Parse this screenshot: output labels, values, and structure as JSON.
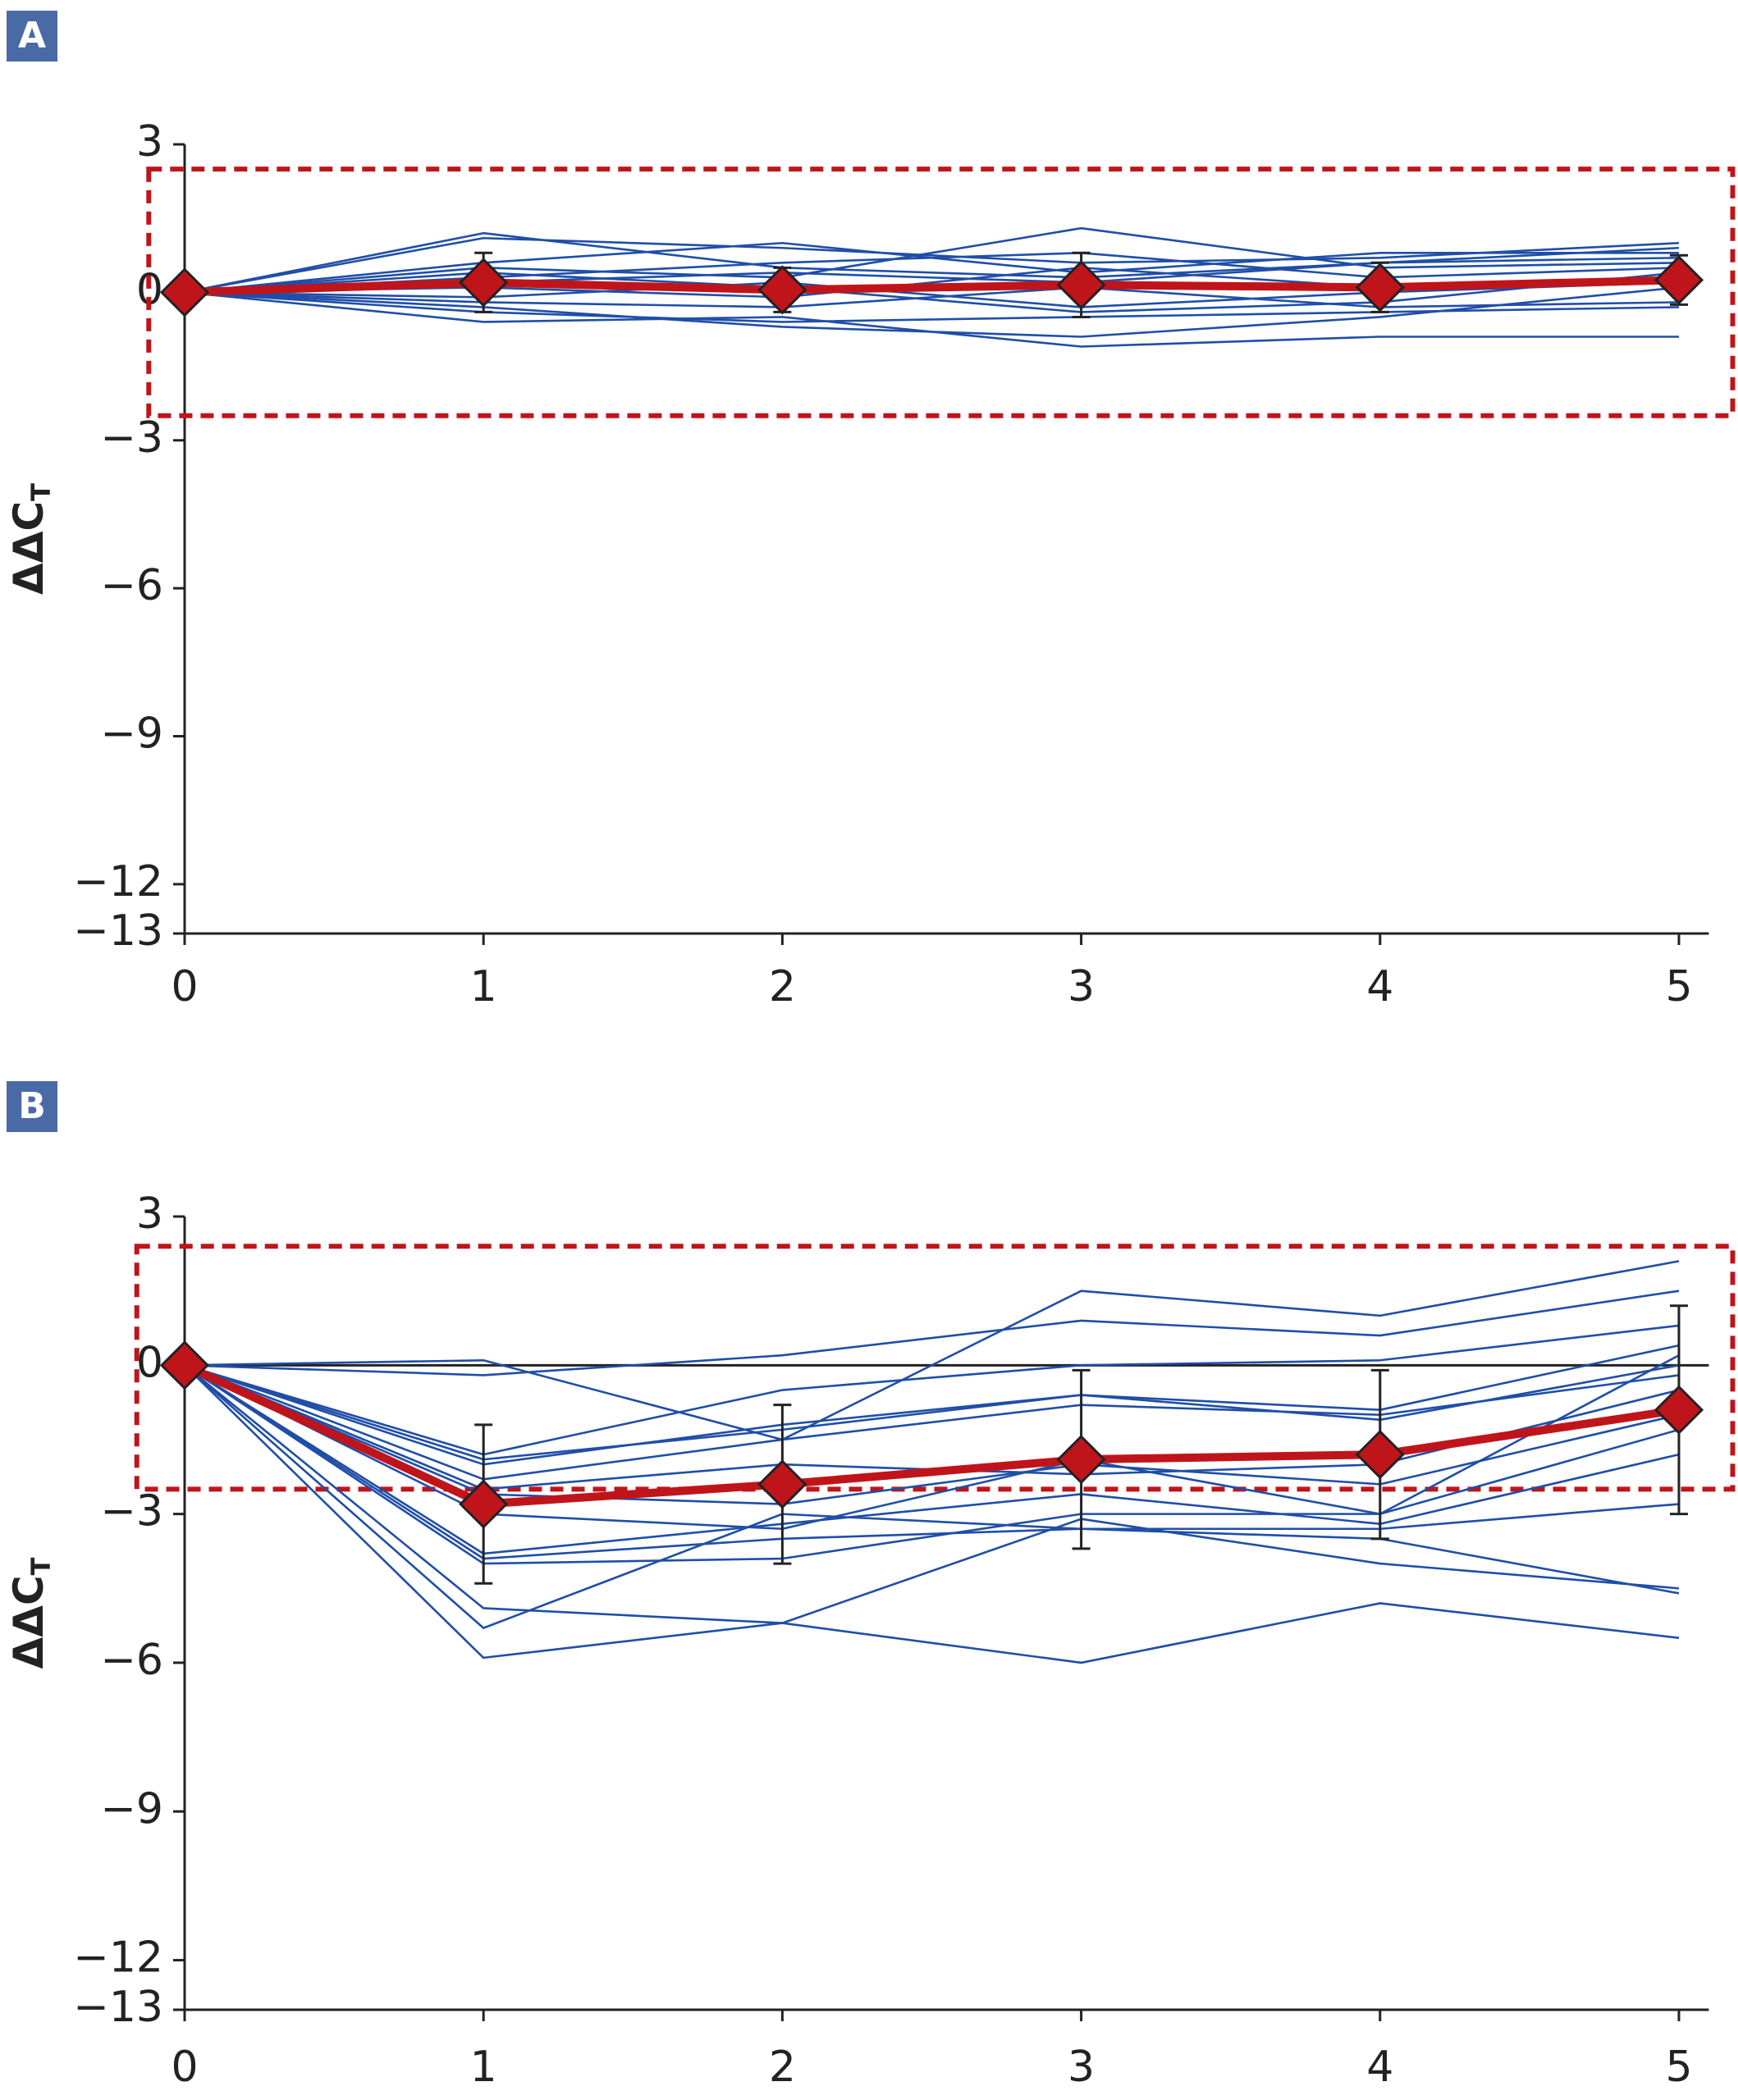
{
  "chart_data": [
    {
      "type": "line",
      "panel_label": "A",
      "y_label": "ΔΔC",
      "y_label_subscript": "T",
      "x": [
        0,
        1,
        2,
        3,
        4,
        5
      ],
      "xlim": [
        0,
        5.1
      ],
      "xticks": [
        0,
        1,
        2,
        3,
        4,
        5
      ],
      "ylim": [
        -13,
        3
      ],
      "yticks": [
        3,
        0,
        {
          "value": -3,
          "label": "−3"
        },
        {
          "value": -6,
          "label": "−6"
        },
        {
          "value": -9,
          "label": "−9"
        },
        {
          "value": -12,
          "label": "−12"
        },
        {
          "value": -13,
          "label": "−13"
        }
      ],
      "zero_line": false,
      "box": {
        "xlim": [
          -0.12,
          5.18
        ],
        "ylim": [
          -2.5,
          2.5
        ],
        "color": "#c0141b"
      },
      "series": [
        {
          "color": "#1f4ea8",
          "values": [
            0,
            1.2,
            0.5,
            0.3,
            0.6,
            0.9
          ]
        },
        {
          "color": "#1f4ea8",
          "values": [
            0,
            1.1,
            0.9,
            0.6,
            0.7,
            1.0
          ]
        },
        {
          "color": "#1f4ea8",
          "values": [
            0,
            0.6,
            1.0,
            0.4,
            0.8,
            0.8
          ]
        },
        {
          "color": "#1f4ea8",
          "values": [
            0,
            0.5,
            0.3,
            1.3,
            0.5,
            0.6
          ]
        },
        {
          "color": "#1f4ea8",
          "values": [
            0,
            0.3,
            0.6,
            0.8,
            0.3,
            0.5
          ]
        },
        {
          "color": "#1f4ea8",
          "values": [
            0,
            0.2,
            0.4,
            0.2,
            0.6,
            0.7
          ]
        },
        {
          "color": "#1f4ea8",
          "values": [
            0,
            0.1,
            -0.1,
            0.5,
            0.1,
            0.3
          ]
        },
        {
          "color": "#1f4ea8",
          "values": [
            0,
            -0.1,
            0.2,
            -0.3,
            0.0,
            0.2
          ]
        },
        {
          "color": "#1f4ea8",
          "values": [
            0,
            -0.2,
            -0.3,
            0.1,
            -0.3,
            -0.2
          ]
        },
        {
          "color": "#1f4ea8",
          "values": [
            0,
            -0.4,
            -0.6,
            -0.5,
            -0.4,
            -0.3
          ]
        },
        {
          "color": "#1f4ea8",
          "values": [
            0,
            -0.6,
            -0.5,
            -1.1,
            -0.9,
            -0.9
          ]
        },
        {
          "color": "#1f4ea8",
          "values": [
            0,
            -0.3,
            -0.7,
            -0.9,
            -0.5,
            0.1
          ]
        },
        {
          "color": "#1f4ea8",
          "values": [
            0,
            0.4,
            0.1,
            -0.4,
            -0.2,
            0.4
          ]
        },
        {
          "color": "#c0141b",
          "marker": "diamond",
          "values": [
            0,
            0.2,
            0.05,
            0.15,
            0.1,
            0.25
          ],
          "errors": [
            0,
            0.6,
            0.45,
            0.65,
            0.5,
            0.5
          ]
        }
      ]
    },
    {
      "type": "line",
      "panel_label": "B",
      "y_label": "ΔΔC",
      "y_label_subscript": "T",
      "x": [
        0,
        1,
        2,
        3,
        4,
        5
      ],
      "xlim": [
        0,
        5.1
      ],
      "xticks": [
        0,
        1,
        2,
        3,
        4,
        5
      ],
      "ylim": [
        -13,
        3
      ],
      "yticks": [
        3,
        0,
        {
          "value": -3,
          "label": "−3"
        },
        {
          "value": -6,
          "label": "−6"
        },
        {
          "value": -9,
          "label": "−9"
        },
        {
          "value": -12,
          "label": "−12"
        },
        {
          "value": -13,
          "label": "−13"
        }
      ],
      "zero_line": true,
      "box": {
        "xlim": [
          -0.16,
          5.18
        ],
        "ylim": [
          -2.5,
          2.4
        ],
        "color": "#c0141b"
      },
      "series": [
        {
          "color": "#1f4ea8",
          "values": [
            0,
            0.1,
            -1.5,
            1.5,
            1.0,
            2.1
          ]
        },
        {
          "color": "#1f4ea8",
          "values": [
            0,
            -0.2,
            0.2,
            0.9,
            0.6,
            1.5
          ]
        },
        {
          "color": "#1f4ea8",
          "values": [
            0,
            -1.8,
            -0.5,
            0.0,
            0.1,
            0.8
          ]
        },
        {
          "color": "#1f4ea8",
          "values": [
            0,
            -2.0,
            -1.2,
            -0.6,
            -0.9,
            0.4
          ]
        },
        {
          "color": "#1f4ea8",
          "values": [
            0,
            -2.3,
            -1.5,
            -0.8,
            -1.0,
            -0.2
          ]
        },
        {
          "color": "#1f4ea8",
          "values": [
            0,
            -2.5,
            -2.0,
            -2.2,
            -2.0,
            -0.5
          ]
        },
        {
          "color": "#1f4ea8",
          "values": [
            0,
            -2.6,
            -2.8,
            -2.0,
            -2.4,
            -1.0
          ]
        },
        {
          "color": "#1f4ea8",
          "values": [
            0,
            -3.0,
            -3.3,
            -1.9,
            -3.0,
            -1.3
          ]
        },
        {
          "color": "#1f4ea8",
          "values": [
            0,
            -3.8,
            -3.2,
            -2.6,
            -3.2,
            -1.8
          ]
        },
        {
          "color": "#1f4ea8",
          "values": [
            0,
            -3.9,
            -3.5,
            -3.3,
            -3.3,
            -2.8
          ]
        },
        {
          "color": "#1f4ea8",
          "values": [
            0,
            -4.0,
            -3.9,
            -3.0,
            -3.0,
            0.2
          ]
        },
        {
          "color": "#1f4ea8",
          "values": [
            0,
            -4.9,
            -5.2,
            -3.1,
            -4.0,
            -4.5
          ]
        },
        {
          "color": "#1f4ea8",
          "values": [
            0,
            -5.3,
            -3.0,
            -3.3,
            -3.5,
            -4.6
          ]
        },
        {
          "color": "#1f4ea8",
          "values": [
            0,
            -5.9,
            -5.2,
            -6.0,
            -4.8,
            -5.5
          ]
        },
        {
          "color": "#1f4ea8",
          "values": [
            0,
            -1.9,
            -1.3,
            -0.6,
            -1.1,
            0.0
          ]
        },
        {
          "color": "#c0141b",
          "marker": "diamond",
          "values": [
            0,
            -2.8,
            -2.4,
            -1.9,
            -1.8,
            -0.9
          ],
          "errors": [
            0,
            1.6,
            1.6,
            1.8,
            1.7,
            2.1
          ]
        }
      ]
    }
  ]
}
